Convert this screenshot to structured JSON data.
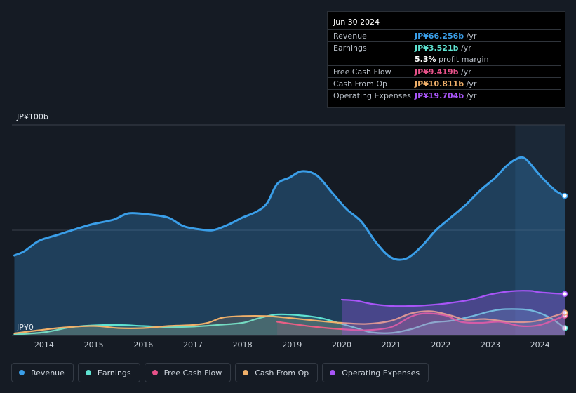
{
  "tooltip": {
    "date": "Jun 30 2024",
    "rows": [
      {
        "label": "Revenue",
        "value": "JP¥66.256b",
        "unit": " /yr",
        "color": "#3a9ee8"
      },
      {
        "label": "Earnings",
        "value": "JP¥3.521b",
        "unit": " /yr",
        "color": "#5fe3d2"
      },
      {
        "label": "Free Cash Flow",
        "value": "JP¥9.419b",
        "unit": " /yr",
        "color": "#e8528a"
      },
      {
        "label": "Cash From Op",
        "value": "JP¥10.811b",
        "unit": " /yr",
        "color": "#f0b06a"
      },
      {
        "label": "Operating Expenses",
        "value": "JP¥19.704b",
        "unit": " /yr",
        "color": "#a855f7"
      }
    ],
    "profit_margin_value": "5.3%",
    "profit_margin_label": " profit margin"
  },
  "chart_data": {
    "type": "area",
    "ylim": [
      0,
      100
    ],
    "y_top_label": "JP¥100b",
    "y_bottom_label": "JP¥0",
    "x_ticks": [
      "2014",
      "2015",
      "2016",
      "2017",
      "2018",
      "2019",
      "2020",
      "2021",
      "2022",
      "2023",
      "2024"
    ],
    "xlim": [
      2013.35,
      2024.5
    ],
    "highlight_from": 2023.5,
    "series": [
      {
        "name": "Revenue",
        "color": "#3a9ee8",
        "points": [
          [
            2013.4,
            38
          ],
          [
            2013.6,
            40
          ],
          [
            2013.9,
            45
          ],
          [
            2014.3,
            48
          ],
          [
            2014.7,
            51
          ],
          [
            2015.0,
            53
          ],
          [
            2015.4,
            55
          ],
          [
            2015.7,
            58
          ],
          [
            2016.1,
            57.5
          ],
          [
            2016.5,
            56
          ],
          [
            2016.8,
            52
          ],
          [
            2017.1,
            50.5
          ],
          [
            2017.4,
            50
          ],
          [
            2017.7,
            52.5
          ],
          [
            2018.0,
            56
          ],
          [
            2018.3,
            59
          ],
          [
            2018.5,
            63
          ],
          [
            2018.7,
            72
          ],
          [
            2018.95,
            75
          ],
          [
            2019.2,
            78
          ],
          [
            2019.5,
            76
          ],
          [
            2019.8,
            68
          ],
          [
            2020.1,
            60
          ],
          [
            2020.4,
            54
          ],
          [
            2020.7,
            44
          ],
          [
            2021.0,
            37
          ],
          [
            2021.3,
            36.5
          ],
          [
            2021.6,
            42
          ],
          [
            2021.9,
            50
          ],
          [
            2022.2,
            56
          ],
          [
            2022.5,
            62
          ],
          [
            2022.8,
            69
          ],
          [
            2023.1,
            75
          ],
          [
            2023.3,
            80
          ],
          [
            2023.5,
            83.5
          ],
          [
            2023.7,
            84
          ],
          [
            2024.0,
            76
          ],
          [
            2024.3,
            69
          ],
          [
            2024.5,
            66.3
          ]
        ]
      },
      {
        "name": "Earnings",
        "color": "#5fe3d2",
        "points": [
          [
            2013.4,
            0.5
          ],
          [
            2014.0,
            1.5
          ],
          [
            2014.5,
            3.8
          ],
          [
            2015.0,
            4.8
          ],
          [
            2015.5,
            5.0
          ],
          [
            2016.0,
            4.5
          ],
          [
            2016.5,
            4.0
          ],
          [
            2017.0,
            4.2
          ],
          [
            2017.5,
            5.0
          ],
          [
            2018.0,
            6.0
          ],
          [
            2018.3,
            8.0
          ],
          [
            2018.7,
            10.0
          ],
          [
            2019.2,
            9.5
          ],
          [
            2019.6,
            8.2
          ],
          [
            2020.0,
            5.5
          ],
          [
            2020.3,
            3.5
          ],
          [
            2020.6,
            1.5
          ],
          [
            2021.0,
            1.2
          ],
          [
            2021.4,
            3.0
          ],
          [
            2021.8,
            6.0
          ],
          [
            2022.2,
            7.0
          ],
          [
            2022.6,
            9.0
          ],
          [
            2023.0,
            11.5
          ],
          [
            2023.3,
            12.5
          ],
          [
            2023.8,
            12.0
          ],
          [
            2024.2,
            8.5
          ],
          [
            2024.5,
            3.5
          ]
        ]
      },
      {
        "name": "Free Cash Flow",
        "color": "#e8528a",
        "points": [
          [
            2018.7,
            6.5
          ],
          [
            2019.0,
            5.5
          ],
          [
            2019.5,
            4.0
          ],
          [
            2020.0,
            3.0
          ],
          [
            2020.5,
            2.5
          ],
          [
            2021.0,
            4.0
          ],
          [
            2021.4,
            9.0
          ],
          [
            2021.7,
            10.5
          ],
          [
            2022.1,
            9.5
          ],
          [
            2022.4,
            6.5
          ],
          [
            2022.8,
            6.0
          ],
          [
            2023.2,
            6.5
          ],
          [
            2023.6,
            4.5
          ],
          [
            2024.0,
            5.0
          ],
          [
            2024.5,
            9.4
          ]
        ]
      },
      {
        "name": "Cash From Op",
        "color": "#f0b06a",
        "points": [
          [
            2013.4,
            1.0
          ],
          [
            2013.9,
            2.5
          ],
          [
            2014.4,
            3.8
          ],
          [
            2015.0,
            4.5
          ],
          [
            2015.5,
            3.5
          ],
          [
            2016.0,
            3.5
          ],
          [
            2016.5,
            4.5
          ],
          [
            2017.0,
            5.0
          ],
          [
            2017.3,
            6.0
          ],
          [
            2017.6,
            8.5
          ],
          [
            2018.0,
            9.2
          ],
          [
            2018.5,
            9.2
          ],
          [
            2019.0,
            8.2
          ],
          [
            2019.5,
            7.0
          ],
          [
            2020.0,
            6.0
          ],
          [
            2020.5,
            5.5
          ],
          [
            2021.0,
            7.0
          ],
          [
            2021.4,
            10.5
          ],
          [
            2021.8,
            11.5
          ],
          [
            2022.2,
            9.5
          ],
          [
            2022.5,
            7.5
          ],
          [
            2022.9,
            7.8
          ],
          [
            2023.4,
            6.5
          ],
          [
            2023.9,
            6.8
          ],
          [
            2024.5,
            10.8
          ]
        ]
      },
      {
        "name": "Operating Expenses",
        "color": "#a855f7",
        "points": [
          [
            2020.0,
            17.0
          ],
          [
            2020.3,
            16.5
          ],
          [
            2020.6,
            15.0
          ],
          [
            2021.0,
            14.0
          ],
          [
            2021.4,
            14.0
          ],
          [
            2021.8,
            14.5
          ],
          [
            2022.2,
            15.5
          ],
          [
            2022.6,
            17.0
          ],
          [
            2023.0,
            19.5
          ],
          [
            2023.4,
            21.0
          ],
          [
            2023.8,
            21.2
          ],
          [
            2024.0,
            20.5
          ],
          [
            2024.5,
            19.7
          ]
        ]
      }
    ]
  },
  "legend": [
    {
      "label": "Revenue",
      "color": "#3a9ee8"
    },
    {
      "label": "Earnings",
      "color": "#5fe3d2"
    },
    {
      "label": "Free Cash Flow",
      "color": "#e8528a"
    },
    {
      "label": "Cash From Op",
      "color": "#f0b06a"
    },
    {
      "label": "Operating Expenses",
      "color": "#a855f7"
    }
  ]
}
